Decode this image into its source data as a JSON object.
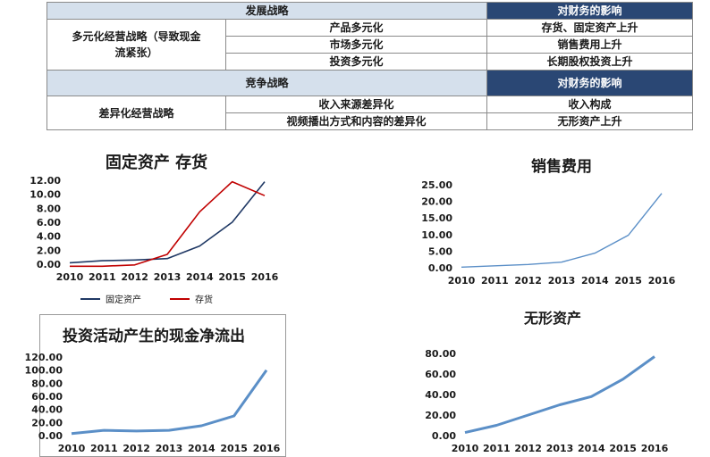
{
  "table": {
    "section1_header": "发展战略",
    "impact_header": "对财务的影响",
    "section1_label": "多元化经营战略（导致现金流紧张）",
    "section1_rows": [
      {
        "strategy": "产品多元化",
        "impact": "存货、固定资产上升"
      },
      {
        "strategy": "市场多元化",
        "impact": "销售费用上升"
      },
      {
        "strategy": "投资多元化",
        "impact": "长期股权投资上升"
      }
    ],
    "section2_header": "竞争战略",
    "section2_label": "差异化经营战略",
    "section2_rows": [
      {
        "strategy": "收入来源差异化",
        "impact": "收入构成"
      },
      {
        "strategy": "视频播出方式和内容的差异化",
        "impact": "无形资产上升"
      }
    ]
  },
  "chart_data": [
    {
      "type": "line",
      "title": "固定资产  存货",
      "categories": [
        "2010",
        "2011",
        "2012",
        "2013",
        "2014",
        "2015",
        "2016"
      ],
      "yticks": [
        "0.00",
        "2.00",
        "4.00",
        "6.00",
        "8.00",
        "10.00",
        "12.00"
      ],
      "ylim": [
        0,
        12
      ],
      "series": [
        {
          "name": "固定资产",
          "color": "#1f3864",
          "values": [
            0.2,
            0.5,
            0.6,
            0.8,
            2.6,
            6.0,
            11.8
          ]
        },
        {
          "name": "存货",
          "color": "#c00000",
          "values": [
            -0.3,
            -0.3,
            -0.1,
            1.4,
            7.5,
            11.8,
            9.8
          ]
        }
      ],
      "legend": "bottom"
    },
    {
      "type": "line",
      "title": "销售费用",
      "categories": [
        "2010",
        "2011",
        "2012",
        "2013",
        "2014",
        "2015",
        "2016"
      ],
      "yticks": [
        "0.00",
        "5.00",
        "10.00",
        "15.00",
        "20.00",
        "25.00"
      ],
      "ylim": [
        0,
        25
      ],
      "series": [
        {
          "color": "#5b8fc7",
          "values": [
            0.2,
            0.6,
            1.0,
            1.7,
            4.4,
            9.8,
            22.4
          ]
        }
      ]
    },
    {
      "type": "line",
      "title": "投资活动产生的现金净流出",
      "categories": [
        "2010",
        "2011",
        "2012",
        "2013",
        "2014",
        "2015",
        "2016"
      ],
      "yticks": [
        "0.00",
        "20.00",
        "40.00",
        "60.00",
        "80.00",
        "100.00",
        "120.00"
      ],
      "ylim": [
        0,
        120
      ],
      "series": [
        {
          "color": "#5b8fc7",
          "values": [
            3,
            8,
            7,
            8,
            15,
            30,
            100
          ]
        }
      ]
    },
    {
      "type": "line",
      "title": "无形资产",
      "categories": [
        "2010",
        "2011",
        "2012",
        "2013",
        "2014",
        "2015",
        "2016"
      ],
      "yticks": [
        "0.00",
        "20.00",
        "40.00",
        "60.00",
        "80.00"
      ],
      "ylim": [
        0,
        80
      ],
      "series": [
        {
          "color": "#5b8fc7",
          "values": [
            3,
            10,
            20,
            30,
            38,
            55,
            77
          ]
        }
      ]
    }
  ]
}
